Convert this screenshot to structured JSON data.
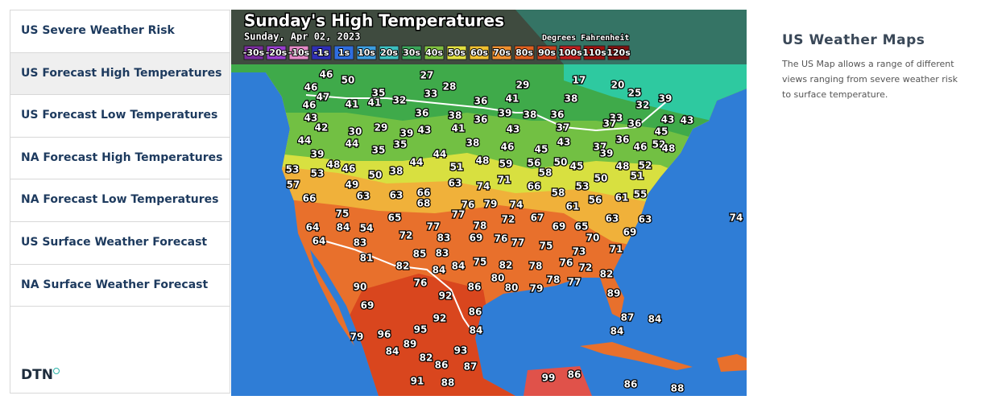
{
  "sidebar": {
    "items": [
      "US Severe Weather Risk",
      "US Forecast High Temperatures",
      "US Forecast Low Temperatures",
      "NA Forecast High Temperatures",
      "NA Forecast Low Temperatures",
      "US Surface Weather Forecast",
      "NA Surface Weather Forecast"
    ],
    "brand": "DTN"
  },
  "map": {
    "title": "Sunday's High Temperatures",
    "subtitle": "Sunday, Apr 02, 2023",
    "units": "Degrees Fahrenheit",
    "legend": [
      "-30s",
      "-20s",
      "-10s",
      "-1s",
      "1s",
      "10s",
      "20s",
      "30s",
      "40s",
      "50s",
      "60s",
      "70s",
      "80s",
      "90s",
      "100s",
      "110s",
      "120s"
    ],
    "temperatures": [
      46,
      50,
      27,
      29,
      17,
      20,
      25,
      46,
      47,
      35,
      28,
      32,
      39,
      46,
      41,
      41,
      32,
      33,
      36,
      41,
      38,
      43,
      36,
      38,
      36,
      39,
      38,
      36,
      33,
      36,
      43,
      43,
      42,
      30,
      29,
      39,
      43,
      41,
      43,
      37,
      37,
      45,
      44,
      44,
      35,
      35,
      38,
      46,
      45,
      43,
      37,
      36,
      46,
      52,
      48,
      39,
      44,
      39,
      48,
      46,
      44,
      51,
      48,
      59,
      56,
      50,
      45,
      48,
      52,
      53,
      53,
      50,
      38,
      58,
      50,
      51,
      57,
      49,
      63,
      74,
      71,
      66,
      53,
      66,
      63,
      63,
      66,
      68,
      76,
      79,
      74,
      58,
      56,
      61,
      55,
      61,
      75,
      65,
      77,
      67,
      63,
      63,
      74,
      64,
      84,
      54,
      77,
      78,
      72,
      69,
      65,
      72,
      83,
      69,
      76,
      77,
      70,
      69,
      64,
      83,
      75,
      71,
      85,
      83,
      73,
      81,
      84,
      75,
      82,
      78,
      76,
      72,
      82,
      84,
      82,
      80,
      78,
      77,
      76,
      86,
      80,
      79,
      90,
      92,
      89,
      69,
      86,
      87,
      84,
      92,
      95,
      84,
      84,
      79,
      96,
      89,
      93,
      84,
      82,
      86,
      87,
      91,
      88,
      99,
      86,
      86,
      88
    ]
  },
  "info": {
    "title": "US Weather Maps",
    "description": "The US Map allows a range of different views ranging from severe weather risk to surface temperature."
  }
}
